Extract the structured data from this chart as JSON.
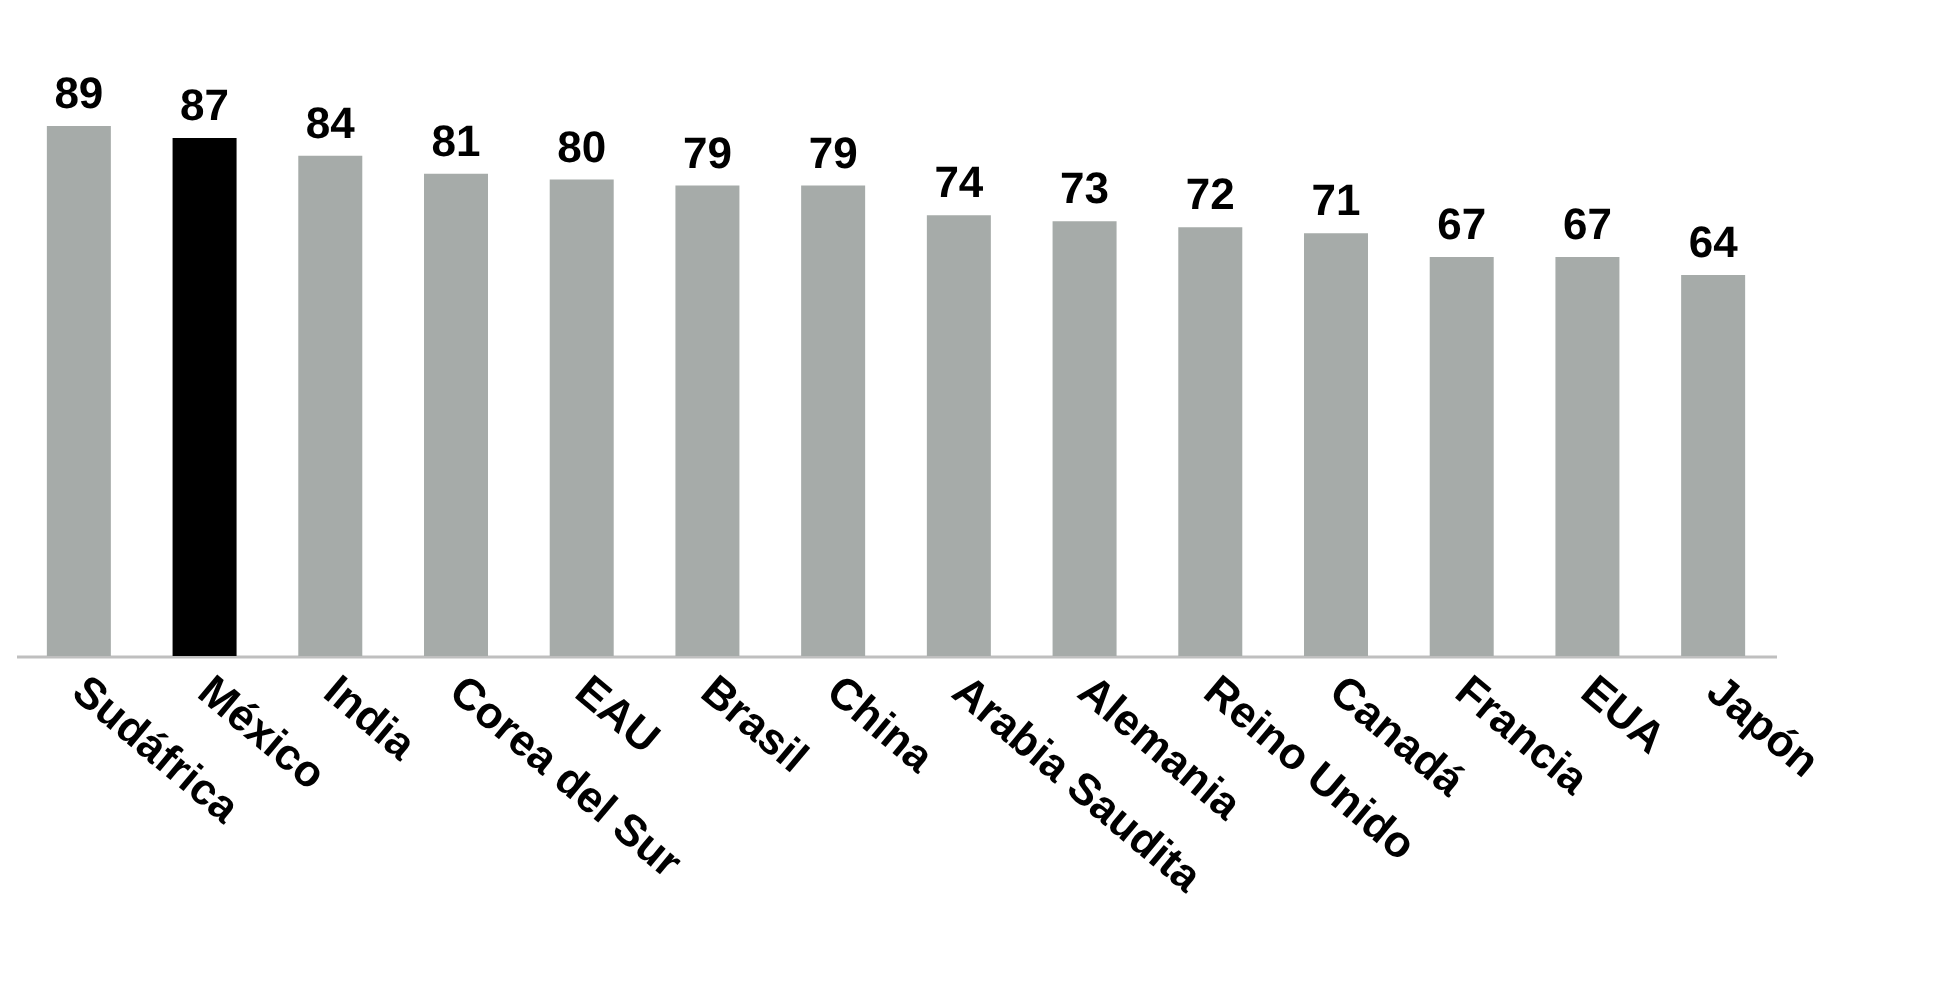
{
  "chart_data": {
    "type": "bar",
    "categories": [
      "Sudáfrica",
      "México",
      "India",
      "Corea del Sur",
      "EAU",
      "Brasil",
      "China",
      "Arabia Saudita",
      "Alemania",
      "Reino Unido",
      "Canadá",
      "Francia",
      "EUA",
      "Japón"
    ],
    "values": [
      89,
      87,
      84,
      81,
      80,
      79,
      79,
      74,
      73,
      72,
      71,
      67,
      67,
      64
    ],
    "colors": [
      "#a6aba9",
      "#000000",
      "#a6aba9",
      "#a6aba9",
      "#a6aba9",
      "#a6aba9",
      "#a6aba9",
      "#a6aba9",
      "#a6aba9",
      "#a6aba9",
      "#a6aba9",
      "#a6aba9",
      "#a6aba9",
      "#a6aba9"
    ],
    "data_labels": true
  }
}
